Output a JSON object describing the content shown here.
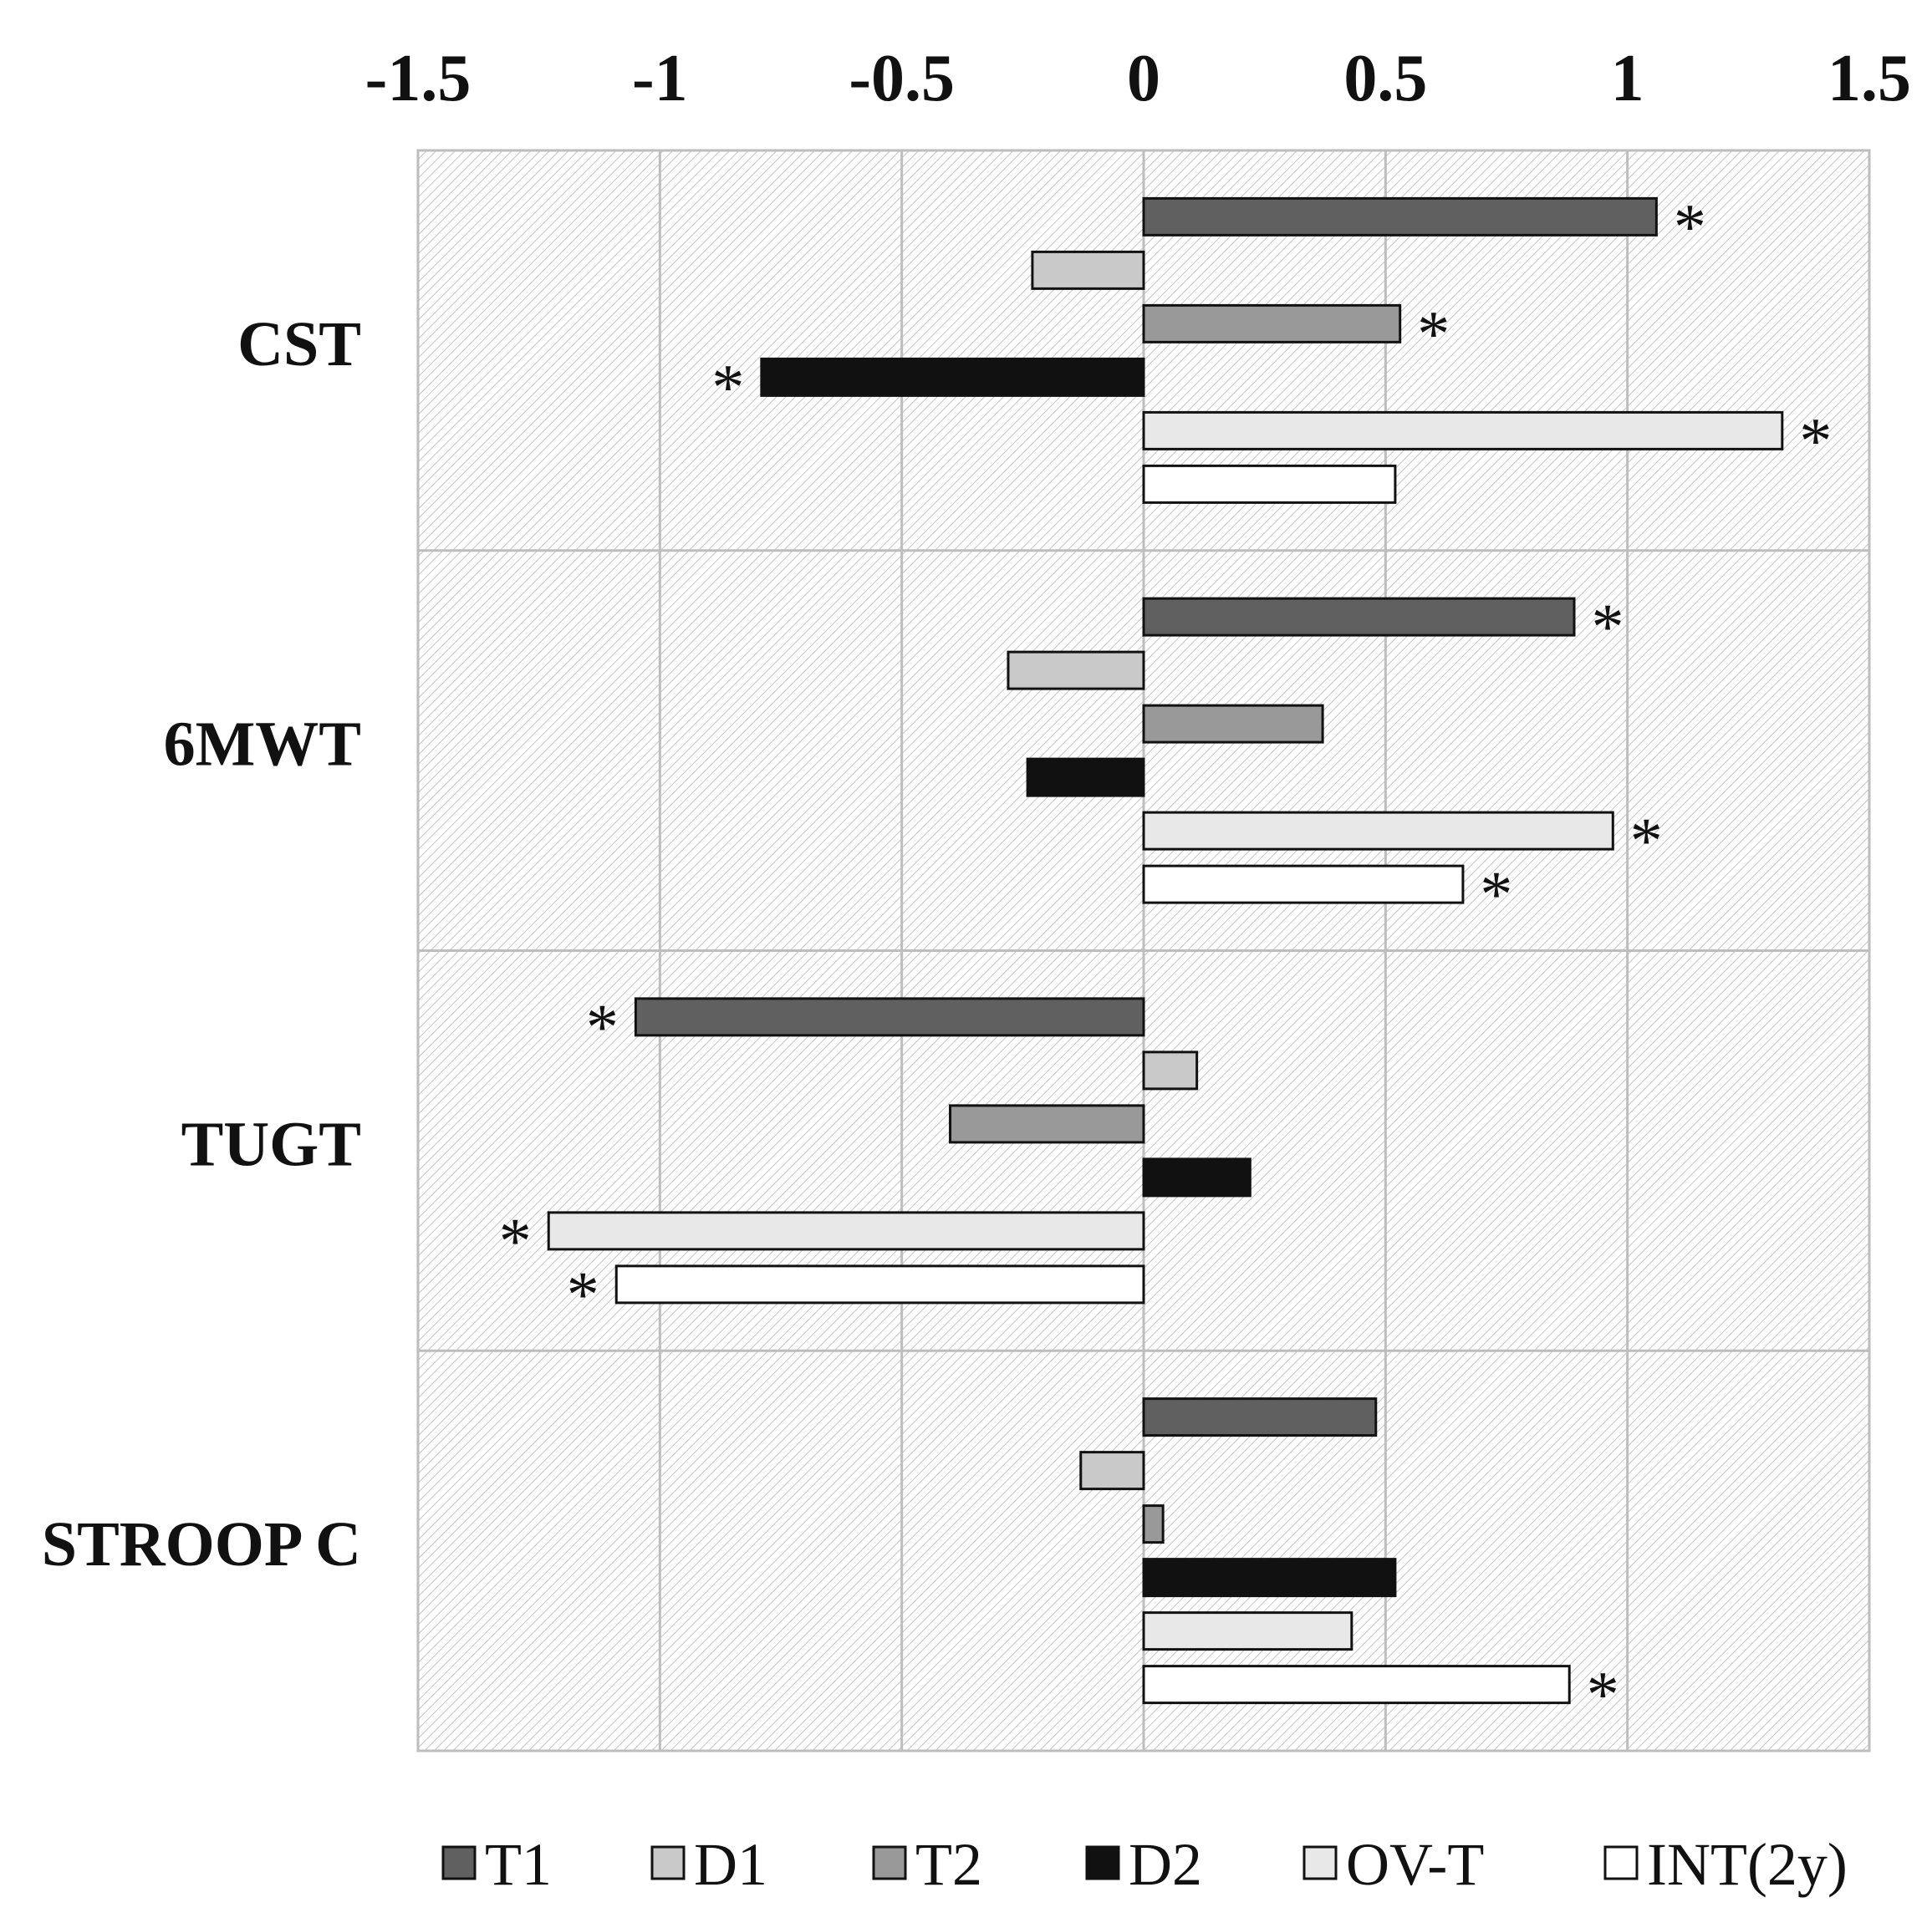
{
  "chart_data": {
    "type": "bar",
    "orientation": "horizontal",
    "title": "",
    "xlabel": "",
    "ylabel": "",
    "xlim": [
      -1.5,
      1.5
    ],
    "x_ticks": [
      -1.5,
      -1,
      -0.5,
      0,
      0.5,
      1,
      1.5
    ],
    "x_tick_labels": [
      "-1.5",
      "-1",
      "-0.5",
      "0",
      "0.5",
      "1",
      "1.5"
    ],
    "axis_position": "top",
    "grid": true,
    "categories": [
      "CST",
      "6MWT",
      "TUGT",
      "STROOP C"
    ],
    "series": [
      {
        "name": "T1",
        "color": "#606060",
        "values": [
          1.06,
          0.89,
          -1.05,
          0.48
        ],
        "significant": [
          true,
          true,
          true,
          false
        ]
      },
      {
        "name": "D1",
        "color": "#c9c9c9",
        "values": [
          -0.23,
          -0.28,
          0.11,
          -0.13
        ],
        "significant": [
          false,
          false,
          false,
          false
        ]
      },
      {
        "name": "T2",
        "color": "#999999",
        "values": [
          0.53,
          0.37,
          -0.4,
          0.04
        ],
        "significant": [
          true,
          false,
          false,
          false
        ]
      },
      {
        "name": "D2",
        "color": "#111111",
        "values": [
          -0.79,
          -0.24,
          0.22,
          0.52
        ],
        "significant": [
          true,
          false,
          false,
          false
        ]
      },
      {
        "name": "OV-T",
        "color": "#e8e8e8",
        "values": [
          1.32,
          0.97,
          -1.23,
          0.43
        ],
        "significant": [
          true,
          true,
          true,
          false
        ]
      },
      {
        "name": "INT(2y)",
        "color": "#ffffff",
        "values": [
          0.52,
          0.66,
          -1.09,
          0.88
        ],
        "significant": [
          false,
          true,
          true,
          true
        ]
      }
    ],
    "significance_marker": "*",
    "legend": {
      "position": "bottom",
      "items": [
        "T1",
        "D1",
        "T2",
        "D2",
        "OV-T",
        "INT(2y)"
      ]
    }
  }
}
